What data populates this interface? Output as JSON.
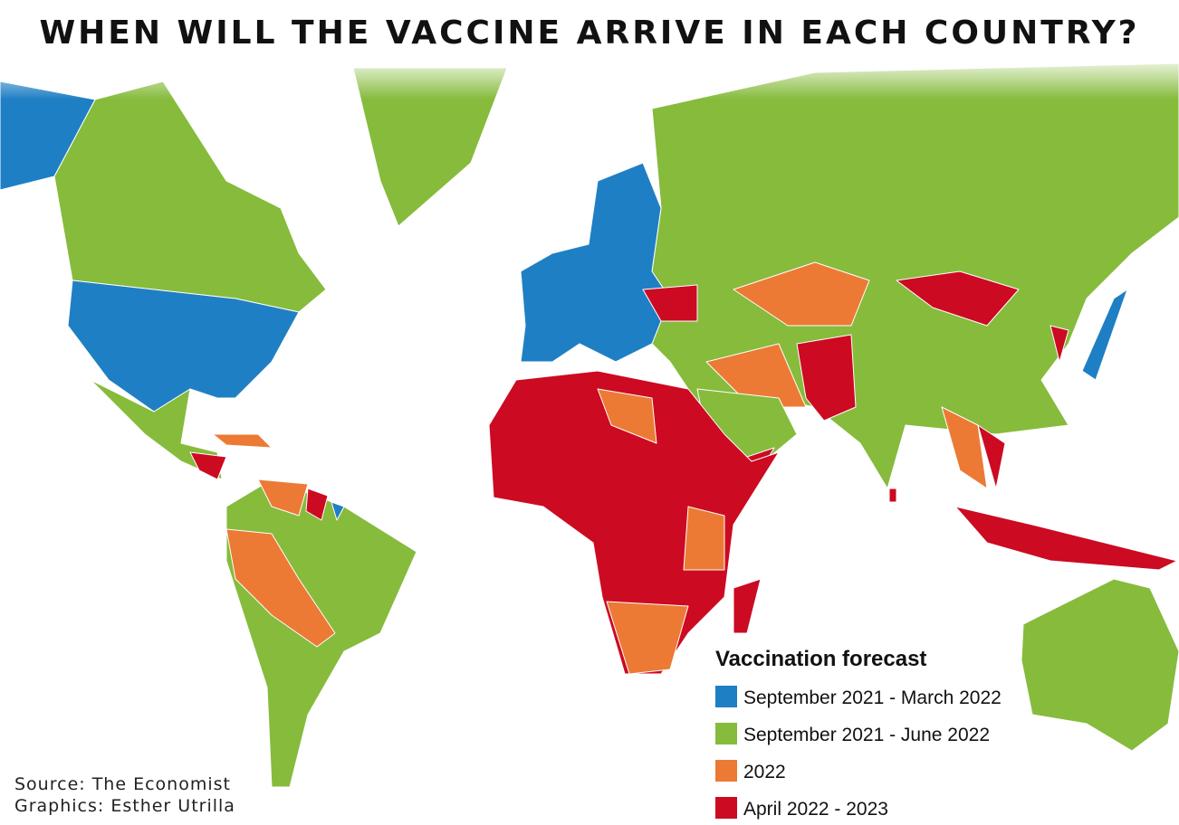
{
  "title": "WHEN WILL THE VACCINE ARRIVE IN EACH COUNTRY?",
  "legend": {
    "title": "Vaccination forecast",
    "items": [
      {
        "label": "September 2021 - March 2022",
        "color": "#1f7fc4"
      },
      {
        "label": "September 2021 - June 2022",
        "color": "#86bb3c"
      },
      {
        "label": "2022",
        "color": "#ec7a34"
      },
      {
        "label": "April 2022 - 2023",
        "color": "#cc0a22"
      }
    ]
  },
  "source": "Source: The Economist",
  "credit": "Graphics: Esther Utrilla"
}
